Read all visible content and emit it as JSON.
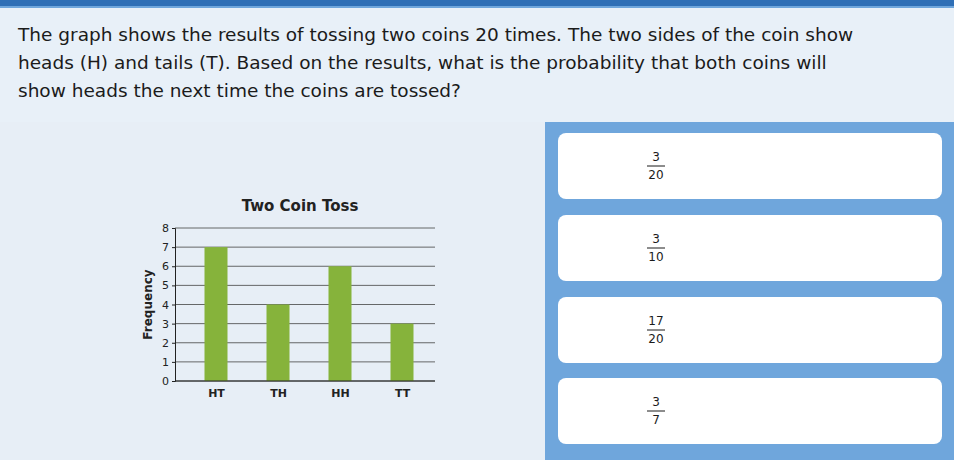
{
  "question": [
    "The graph shows the results of tossing two coins 20 times. The two sides of the coin show",
    "heads (H) and tails (T). Based on the results, what is the probability that both coins will",
    "show heads the next time the coins are tossed?"
  ],
  "choices": [
    {
      "numerator": 3,
      "denominator": 20
    },
    {
      "numerator": 3,
      "denominator": 10
    },
    {
      "numerator": 17,
      "denominator": 20
    },
    {
      "numerator": 3,
      "denominator": 7
    }
  ],
  "chart_data": {
    "type": "bar",
    "title": "Two Coin Toss",
    "y_label": "Frequency",
    "categories": [
      "HT",
      "TH",
      "HH",
      "TT"
    ],
    "values": [
      7,
      4,
      6,
      3
    ],
    "color": "#86b33b",
    "ylim": [
      0,
      8
    ],
    "yticks": [
      0,
      1,
      2,
      3,
      4,
      5,
      6,
      7,
      8
    ],
    "grid": true
  }
}
